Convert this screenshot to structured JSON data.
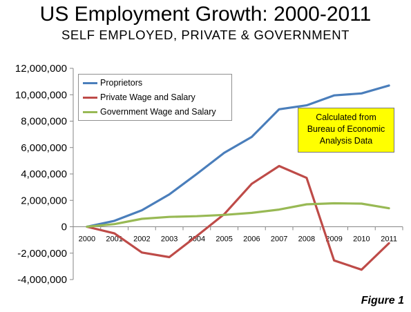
{
  "chart_data": {
    "type": "line",
    "title": "US Employment Growth: 2000-2011",
    "subtitle": "SELF EMPLOYED, PRIVATE & GOVERNMENT",
    "xlabel": "",
    "ylabel": "",
    "categories": [
      "2000",
      "2001",
      "2002",
      "2003",
      "2004",
      "2005",
      "2006",
      "2007",
      "2008",
      "2009",
      "2010",
      "2011"
    ],
    "ylim": [
      -4000000,
      12000000
    ],
    "yticks": [
      -4000000,
      -2000000,
      0,
      2000000,
      4000000,
      6000000,
      8000000,
      10000000,
      12000000
    ],
    "ytick_labels": [
      "-4,000,000",
      "-2,000,000",
      "0",
      "2,000,000",
      "4,000,000",
      "6,000,000",
      "8,000,000",
      "10,000,000",
      "12,000,000"
    ],
    "grid": false,
    "legend_position": "top-left",
    "series": [
      {
        "name": "Proprietors",
        "color": "#4a7ebb",
        "values": [
          0,
          450000,
          1250000,
          2450000,
          4000000,
          5600000,
          6800000,
          8900000,
          9200000,
          9950000,
          10100000,
          10700000
        ]
      },
      {
        "name": "Private Wage and Salary",
        "color": "#be4b48",
        "values": [
          0,
          -500000,
          -1950000,
          -2300000,
          -700000,
          950000,
          3250000,
          4600000,
          3700000,
          -2550000,
          -3250000,
          -1250000
        ]
      },
      {
        "name": "Government Wage and Salary",
        "color": "#98b954",
        "values": [
          0,
          200000,
          600000,
          750000,
          800000,
          900000,
          1050000,
          1300000,
          1700000,
          1780000,
          1750000,
          1400000
        ]
      }
    ],
    "annotation": [
      "Calculated from",
      "Bureau of Economic",
      "Analysis Data"
    ]
  },
  "figure_label": "Figure 1"
}
